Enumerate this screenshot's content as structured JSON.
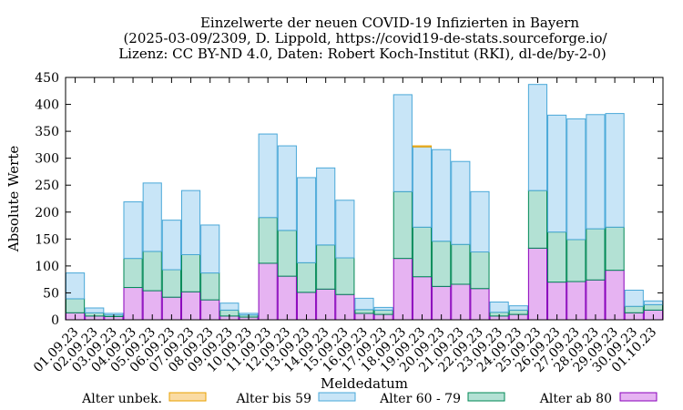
{
  "chart_data": {
    "type": "bar",
    "stacked": true,
    "title_lines": [
      "Einzelwerte der neuen COVID-19 Infizierten in Bayern",
      "(2025-03-09/2309, D. Lippold, https://covid19-de-stats.sourceforge.io/",
      "Lizenz: CC BY-ND 4.0, Daten: Robert Koch-Institut (RKI), dl-de/by-2-0)"
    ],
    "xlabel": "Meldedatum",
    "ylabel": "Absolute Werte",
    "ylim": [
      0,
      450
    ],
    "yticks": [
      0,
      50,
      100,
      150,
      200,
      250,
      300,
      350,
      400,
      450
    ],
    "grid": false,
    "legend_position": "bottom",
    "categories": [
      "01.09.23",
      "02.09.23",
      "03.09.23",
      "04.09.23",
      "05.09.23",
      "06.09.23",
      "07.09.23",
      "08.09.23",
      "09.09.23",
      "10.09.23",
      "11.09.23",
      "12.09.23",
      "13.09.23",
      "14.09.23",
      "15.09.23",
      "16.09.23",
      "17.09.23",
      "18.09.23",
      "19.09.23",
      "20.09.23",
      "21.09.23",
      "22.09.23",
      "23.09.23",
      "24.09.23",
      "25.09.23",
      "26.09.23",
      "27.09.23",
      "28.09.23",
      "29.09.23",
      "30.09.23",
      "01.10.23"
    ],
    "series": [
      {
        "name": "Alter ab 80",
        "fill": "#e6b3f2",
        "stroke": "#8800bb",
        "values": [
          13,
          7,
          6,
          60,
          54,
          42,
          52,
          37,
          7,
          5,
          105,
          81,
          51,
          57,
          47,
          12,
          10,
          114,
          80,
          62,
          66,
          58,
          7,
          10,
          133,
          70,
          71,
          74,
          92,
          13,
          18
        ]
      },
      {
        "name": "Alter 60 - 79",
        "fill": "#b3e1d4",
        "stroke": "#008855",
        "values": [
          26,
          6,
          3,
          54,
          73,
          51,
          69,
          50,
          11,
          4,
          85,
          85,
          55,
          82,
          68,
          7,
          8,
          124,
          92,
          84,
          74,
          68,
          7,
          8,
          107,
          93,
          78,
          95,
          80,
          12,
          10
        ]
      },
      {
        "name": "Alter bis 59",
        "fill": "#c8e5f7",
        "stroke": "#4aa8d8",
        "values": [
          48,
          9,
          3,
          105,
          127,
          92,
          119,
          89,
          13,
          3,
          155,
          157,
          158,
          143,
          107,
          21,
          5,
          180,
          149,
          170,
          154,
          112,
          19,
          8,
          197,
          217,
          224,
          212,
          211,
          30,
          7
        ]
      },
      {
        "name": "Alter unbek.",
        "fill": "#fadba3",
        "stroke": "#e8a000",
        "values": [
          0,
          0,
          0,
          0,
          0,
          0,
          0,
          0,
          0,
          0,
          0,
          0,
          0,
          0,
          0,
          0,
          0,
          0,
          2,
          0,
          0,
          0,
          0,
          0,
          0,
          0,
          0,
          0,
          0,
          0,
          0
        ]
      }
    ],
    "legend_order": [
      "Alter unbek.",
      "Alter bis 59",
      "Alter 60 - 79",
      "Alter ab 80"
    ]
  }
}
